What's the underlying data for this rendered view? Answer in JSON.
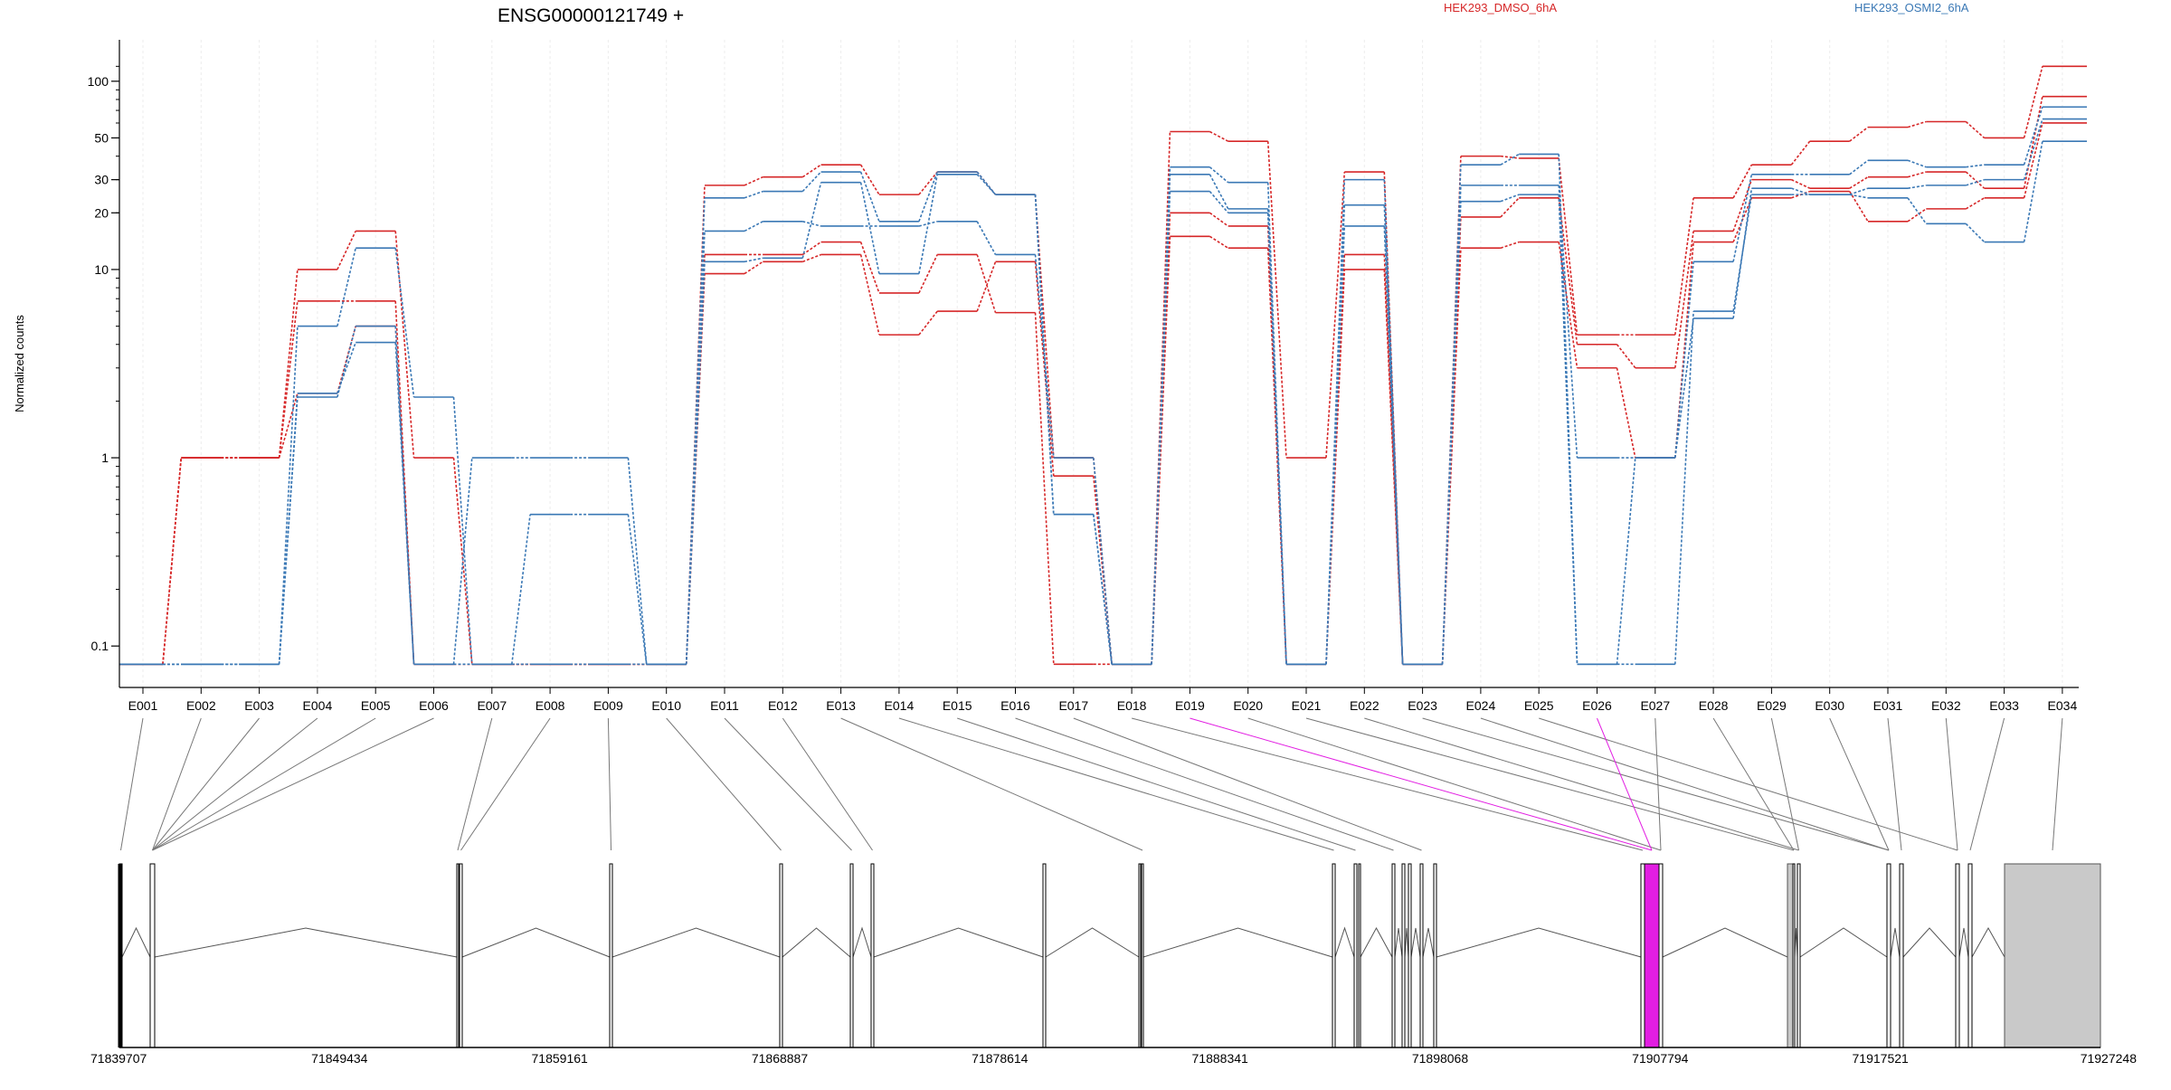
{
  "chart_data": {
    "type": "line",
    "title": "ENSG00000121749 +",
    "ylabel": "Normalized counts",
    "yscale": "log",
    "yticks": [
      0.1,
      1,
      10,
      20,
      30,
      50,
      100
    ],
    "ytick_labels": [
      "0.1",
      "1",
      "10",
      "20",
      "30",
      "50",
      "100"
    ],
    "legend": [
      {
        "name": "HEK293_DMSO_6hA",
        "color": "#d62728"
      },
      {
        "name": "HEK293_OSMI2_6hA",
        "color": "#3a78b5"
      }
    ],
    "categories": [
      "E001",
      "E002",
      "E003",
      "E004",
      "E005",
      "E006",
      "E007",
      "E008",
      "E009",
      "E010",
      "E011",
      "E012",
      "E013",
      "E014",
      "E015",
      "E016",
      "E017",
      "E018",
      "E019",
      "E020",
      "E021",
      "E022",
      "E023",
      "E024",
      "E025",
      "E026",
      "E027",
      "E028",
      "E029",
      "E030",
      "E031",
      "E032",
      "E033",
      "E034"
    ],
    "series": [
      {
        "group": 0,
        "values": [
          0.08,
          1,
          1,
          10,
          16,
          1,
          0.08,
          0.08,
          0.08,
          0.08,
          28,
          31,
          36,
          25,
          33,
          25,
          1,
          0.08,
          54,
          48,
          1,
          33,
          0.08,
          40,
          39,
          4.5,
          4.5,
          24,
          36,
          48,
          57,
          61,
          50,
          120
        ]
      },
      {
        "group": 0,
        "values": [
          0.08,
          1,
          1,
          6.8,
          6.8,
          0.08,
          0.08,
          0.08,
          0.08,
          0.08,
          12,
          12,
          14,
          7.5,
          12,
          5.9,
          0.08,
          0.08,
          20,
          17,
          0.08,
          12,
          0.08,
          19,
          24,
          4,
          3,
          16,
          30,
          27,
          31,
          33,
          27,
          83
        ]
      },
      {
        "group": 0,
        "values": [
          0.08,
          1,
          1,
          2.2,
          5,
          0.08,
          0.08,
          0.08,
          0.08,
          0.08,
          9.5,
          11,
          12,
          4.5,
          6,
          11,
          0.8,
          0.08,
          15,
          13,
          0.08,
          10,
          0.08,
          13,
          14,
          3,
          1,
          14,
          24,
          26,
          18,
          21,
          24,
          60
        ]
      },
      {
        "group": 1,
        "values": [
          0.08,
          0.08,
          0.08,
          5,
          13,
          2.1,
          0.08,
          0.08,
          0.08,
          0.08,
          24,
          26,
          33,
          18,
          33,
          25,
          0.5,
          0.08,
          35,
          29,
          0.08,
          30,
          0.08,
          36,
          41,
          0.08,
          1,
          11,
          32,
          32,
          38,
          35,
          36,
          73
        ]
      },
      {
        "group": 1,
        "values": [
          0.08,
          0.08,
          0.08,
          2.2,
          4.1,
          0.08,
          1,
          1,
          1,
          0.08,
          16,
          18,
          17,
          17,
          18,
          12,
          1,
          0.08,
          32,
          21,
          0.08,
          22,
          0.08,
          28,
          28,
          1,
          1,
          5.5,
          27,
          25,
          27,
          28,
          30,
          63
        ]
      },
      {
        "group": 1,
        "values": [
          0.08,
          0.08,
          0.08,
          2.1,
          5,
          0.08,
          0.08,
          0.5,
          0.5,
          0.08,
          11,
          11.5,
          29,
          9.5,
          32,
          25,
          0.5,
          0.08,
          26,
          20,
          0.08,
          17,
          0.08,
          23,
          25,
          0.08,
          0.08,
          6,
          25,
          25,
          24,
          17.5,
          14,
          48
        ]
      }
    ]
  },
  "gene_model": {
    "coordinates": [
      "71839707",
      "71849434",
      "71859161",
      "71868887",
      "71878614",
      "71888341",
      "71898068",
      "71907794",
      "71917521",
      "71927248"
    ],
    "highlight_color": "#e21ee2",
    "exon_color": "#c9c9c9"
  }
}
